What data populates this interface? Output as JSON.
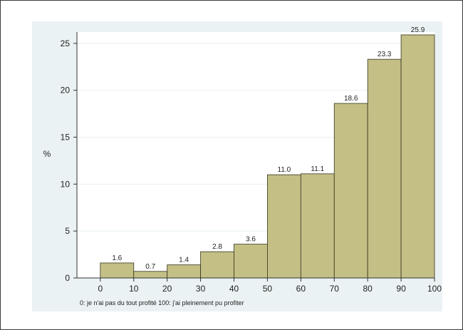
{
  "chart_data": {
    "type": "bar",
    "bins": [
      {
        "start": 0,
        "end": 10,
        "value": 1.6,
        "label": "1.6"
      },
      {
        "start": 10,
        "end": 20,
        "value": 0.7,
        "label": "0.7"
      },
      {
        "start": 20,
        "end": 30,
        "value": 1.4,
        "label": "1.4"
      },
      {
        "start": 30,
        "end": 40,
        "value": 2.8,
        "label": "2.8"
      },
      {
        "start": 40,
        "end": 50,
        "value": 3.6,
        "label": "3.6"
      },
      {
        "start": 50,
        "end": 60,
        "value": 11.0,
        "label": "11.0"
      },
      {
        "start": 60,
        "end": 70,
        "value": 11.1,
        "label": "11.1"
      },
      {
        "start": 70,
        "end": 80,
        "value": 18.6,
        "label": "18.6"
      },
      {
        "start": 80,
        "end": 90,
        "value": 23.3,
        "label": "23.3"
      },
      {
        "start": 90,
        "end": 100,
        "value": 25.9,
        "label": "25.9"
      }
    ],
    "xticks": [
      0,
      10,
      20,
      30,
      40,
      50,
      60,
      70,
      80,
      90,
      100
    ],
    "yticks": [
      0,
      5,
      10,
      15,
      20,
      25
    ],
    "ylabel": "%",
    "xnote": "0: je n'ai pas du tout profité   100: j'ai pleinement pu profiter",
    "xlim": [
      -7,
      100
    ],
    "ylim": [
      0,
      26.2
    ],
    "grid": true,
    "colors": {
      "bar_fill": "#c4bf85",
      "bar_stroke": "#35351e",
      "panel_bg": "#eaf2f3",
      "plot_bg": "#ffffff",
      "grid": "#e9f0f1",
      "axis": "#333333"
    }
  }
}
